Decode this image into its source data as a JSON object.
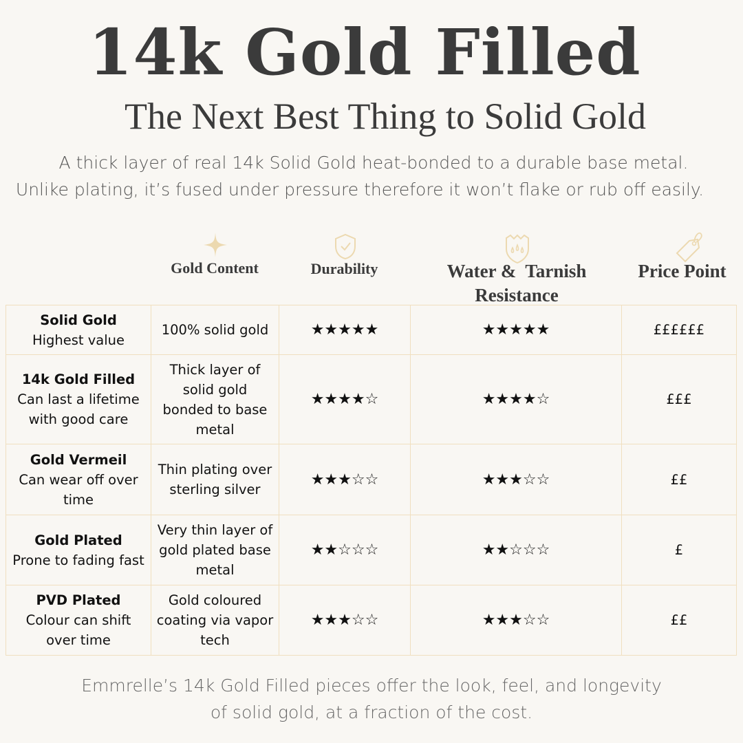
{
  "header": {
    "title": "14k Gold Filled",
    "subtitle": "The Next Best Thing to Solid Gold",
    "intro_line1": "A thick layer of real 14k Solid Gold heat-bonded to a durable base metal.",
    "intro_line2": "Unlike plating, it’s fused under pressure therefore it won’t flake or rub off easily."
  },
  "colors": {
    "accent": "#ecd9b0",
    "border": "#f0dfbf",
    "background": "#f9f7f3",
    "text": "#3a3a3a"
  },
  "columns": [
    {
      "label": "Gold Content",
      "icon": "sparkle-icon"
    },
    {
      "label": "Durability",
      "icon": "shield-check-icon"
    },
    {
      "label_line1": "Water &  Tarnish",
      "label_line2": "Resistance",
      "icon": "water-shield-icon"
    },
    {
      "label": "Price Point",
      "icon": "price-tag-icon"
    }
  ],
  "rows": [
    {
      "name": "Solid Gold",
      "note": "Highest value",
      "content": "100% solid gold",
      "durability": "★★★★★",
      "water": "★★★★★",
      "price": "££££££",
      "durability_rating": 5,
      "water_rating": 5
    },
    {
      "name": "14k Gold Filled",
      "note": "Can last a lifetime with good care",
      "content": "Thick layer of solid gold bonded to base metal",
      "durability": "★★★★☆",
      "water": "★★★★☆",
      "price": "£££",
      "durability_rating": 4,
      "water_rating": 4
    },
    {
      "name": "Gold Vermeil",
      "note": "Can wear off over time",
      "content": "Thin plating over sterling silver",
      "durability": "★★★☆☆",
      "water": "★★★☆☆",
      "price": "££",
      "durability_rating": 3,
      "water_rating": 3
    },
    {
      "name": "Gold Plated",
      "note": "Prone to fading fast",
      "content": "Very thin layer of gold plated base metal",
      "durability": "★★☆☆☆",
      "water": "★★☆☆☆",
      "price": "£",
      "durability_rating": 2,
      "water_rating": 2
    },
    {
      "name": "PVD Plated",
      "note": "Colour can shift over time",
      "content": "Gold coloured coating via vapor tech",
      "durability": "★★★☆☆",
      "water": "★★★☆☆",
      "price": "££",
      "durability_rating": 3,
      "water_rating": 3
    }
  ],
  "footer": {
    "line1": "Emmrelle’s 14k Gold Filled pieces offer the look, feel, and longevity",
    "line2": "of solid gold, at a fraction of the cost."
  }
}
